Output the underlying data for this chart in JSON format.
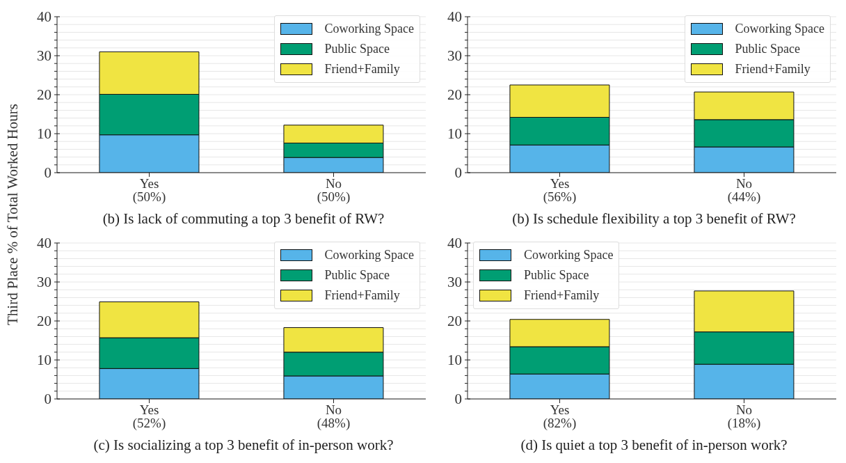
{
  "chart_data": [
    {
      "type": "bar",
      "stacked": true,
      "xlabel": "(b) Is lack of commuting a top 3 benefit of RW?",
      "ylabel": "Third Place % of Total Worked Hours",
      "categories": [
        "Yes\n(50%)",
        "No\n(50%)"
      ],
      "series": [
        {
          "name": "Coworking Space",
          "color": "#56b4e9",
          "values": [
            9.7,
            3.9
          ]
        },
        {
          "name": "Public Space",
          "color": "#009e73",
          "values": [
            10.4,
            3.7
          ]
        },
        {
          "name": "Friend+Family",
          "color": "#f0e442",
          "values": [
            10.9,
            4.6
          ]
        }
      ],
      "ylim": [
        0,
        40
      ],
      "yticks": [
        0,
        {
          "value": 2,
          "label": null
        },
        {
          "value": 4,
          "label": null
        },
        {
          "value": 6,
          "label": null
        },
        {
          "value": 8,
          "label": null
        },
        10,
        {
          "value": 12,
          "label": null
        },
        {
          "value": 14,
          "label": null
        },
        {
          "value": 16,
          "label": null
        },
        {
          "value": 18,
          "label": null
        },
        20,
        {
          "value": 22,
          "label": null
        },
        {
          "value": 24,
          "label": null
        },
        {
          "value": 26,
          "label": null
        },
        {
          "value": 28,
          "label": null
        },
        30,
        {
          "value": 32,
          "label": null
        },
        {
          "value": 34,
          "label": null
        },
        {
          "value": 36,
          "label": null
        },
        {
          "value": 38,
          "label": null
        },
        40
      ],
      "grid": "y",
      "legend": "top right"
    },
    {
      "type": "bar",
      "stacked": true,
      "xlabel": "(b) Is schedule flexibility a top 3 benefit of RW?",
      "categories": [
        "Yes\n(56%)",
        "No\n(44%)"
      ],
      "series": [
        {
          "name": "Coworking Space",
          "color": "#56b4e9",
          "values": [
            7.1,
            6.6
          ]
        },
        {
          "name": "Public Space",
          "color": "#009e73",
          "values": [
            7.1,
            7.0
          ]
        },
        {
          "name": "Friend+Family",
          "color": "#f0e442",
          "values": [
            8.3,
            7.1
          ]
        }
      ],
      "ylim": [
        0,
        40
      ],
      "yticks": [
        0,
        {
          "value": 2,
          "label": null
        },
        {
          "value": 4,
          "label": null
        },
        {
          "value": 6,
          "label": null
        },
        {
          "value": 8,
          "label": null
        },
        10,
        {
          "value": 12,
          "label": null
        },
        {
          "value": 14,
          "label": null
        },
        {
          "value": 16,
          "label": null
        },
        {
          "value": 18,
          "label": null
        },
        20,
        {
          "value": 22,
          "label": null
        },
        {
          "value": 24,
          "label": null
        },
        {
          "value": 26,
          "label": null
        },
        {
          "value": 28,
          "label": null
        },
        30,
        {
          "value": 32,
          "label": null
        },
        {
          "value": 34,
          "label": null
        },
        {
          "value": 36,
          "label": null
        },
        {
          "value": 38,
          "label": null
        },
        40
      ],
      "grid": "y",
      "legend": "top right"
    },
    {
      "type": "bar",
      "stacked": true,
      "xlabel": "(c) Is socializing a top 3 benefit of in-person work?",
      "categories": [
        "Yes\n(52%)",
        "No\n(48%)"
      ],
      "series": [
        {
          "name": "Coworking Space",
          "color": "#56b4e9",
          "values": [
            7.8,
            5.9
          ]
        },
        {
          "name": "Public Space",
          "color": "#009e73",
          "values": [
            7.9,
            6.1
          ]
        },
        {
          "name": "Friend+Family",
          "color": "#f0e442",
          "values": [
            9.2,
            6.3
          ]
        }
      ],
      "ylim": [
        0,
        40
      ],
      "yticks": [
        0,
        {
          "value": 2,
          "label": null
        },
        {
          "value": 4,
          "label": null
        },
        {
          "value": 6,
          "label": null
        },
        {
          "value": 8,
          "label": null
        },
        10,
        {
          "value": 12,
          "label": null
        },
        {
          "value": 14,
          "label": null
        },
        {
          "value": 16,
          "label": null
        },
        {
          "value": 18,
          "label": null
        },
        20,
        {
          "value": 22,
          "label": null
        },
        {
          "value": 24,
          "label": null
        },
        {
          "value": 26,
          "label": null
        },
        {
          "value": 28,
          "label": null
        },
        30,
        {
          "value": 32,
          "label": null
        },
        {
          "value": 34,
          "label": null
        },
        {
          "value": 36,
          "label": null
        },
        {
          "value": 38,
          "label": null
        },
        40
      ],
      "grid": "y",
      "legend": "top right"
    },
    {
      "type": "bar",
      "stacked": true,
      "xlabel": "(d) Is quiet a top 3 benefit of in-person work?",
      "categories": [
        "Yes\n(82%)",
        "No\n(18%)"
      ],
      "series": [
        {
          "name": "Coworking Space",
          "color": "#56b4e9",
          "values": [
            6.4,
            8.9
          ]
        },
        {
          "name": "Public Space",
          "color": "#009e73",
          "values": [
            7.0,
            8.3
          ]
        },
        {
          "name": "Friend+Family",
          "color": "#f0e442",
          "values": [
            7.0,
            10.5
          ]
        }
      ],
      "ylim": [
        0,
        40
      ],
      "yticks": [
        0,
        {
          "value": 2,
          "label": null
        },
        {
          "value": 4,
          "label": null
        },
        {
          "value": 6,
          "label": null
        },
        {
          "value": 8,
          "label": null
        },
        10,
        {
          "value": 12,
          "label": null
        },
        {
          "value": 14,
          "label": null
        },
        {
          "value": 16,
          "label": null
        },
        {
          "value": 18,
          "label": null
        },
        20,
        {
          "value": 22,
          "label": null
        },
        {
          "value": 24,
          "label": null
        },
        {
          "value": 26,
          "label": null
        },
        {
          "value": 28,
          "label": null
        },
        30,
        {
          "value": 32,
          "label": null
        },
        {
          "value": 34,
          "label": null
        },
        {
          "value": 36,
          "label": null
        },
        {
          "value": 38,
          "label": null
        },
        40
      ],
      "grid": "y",
      "legend": "top left"
    }
  ]
}
